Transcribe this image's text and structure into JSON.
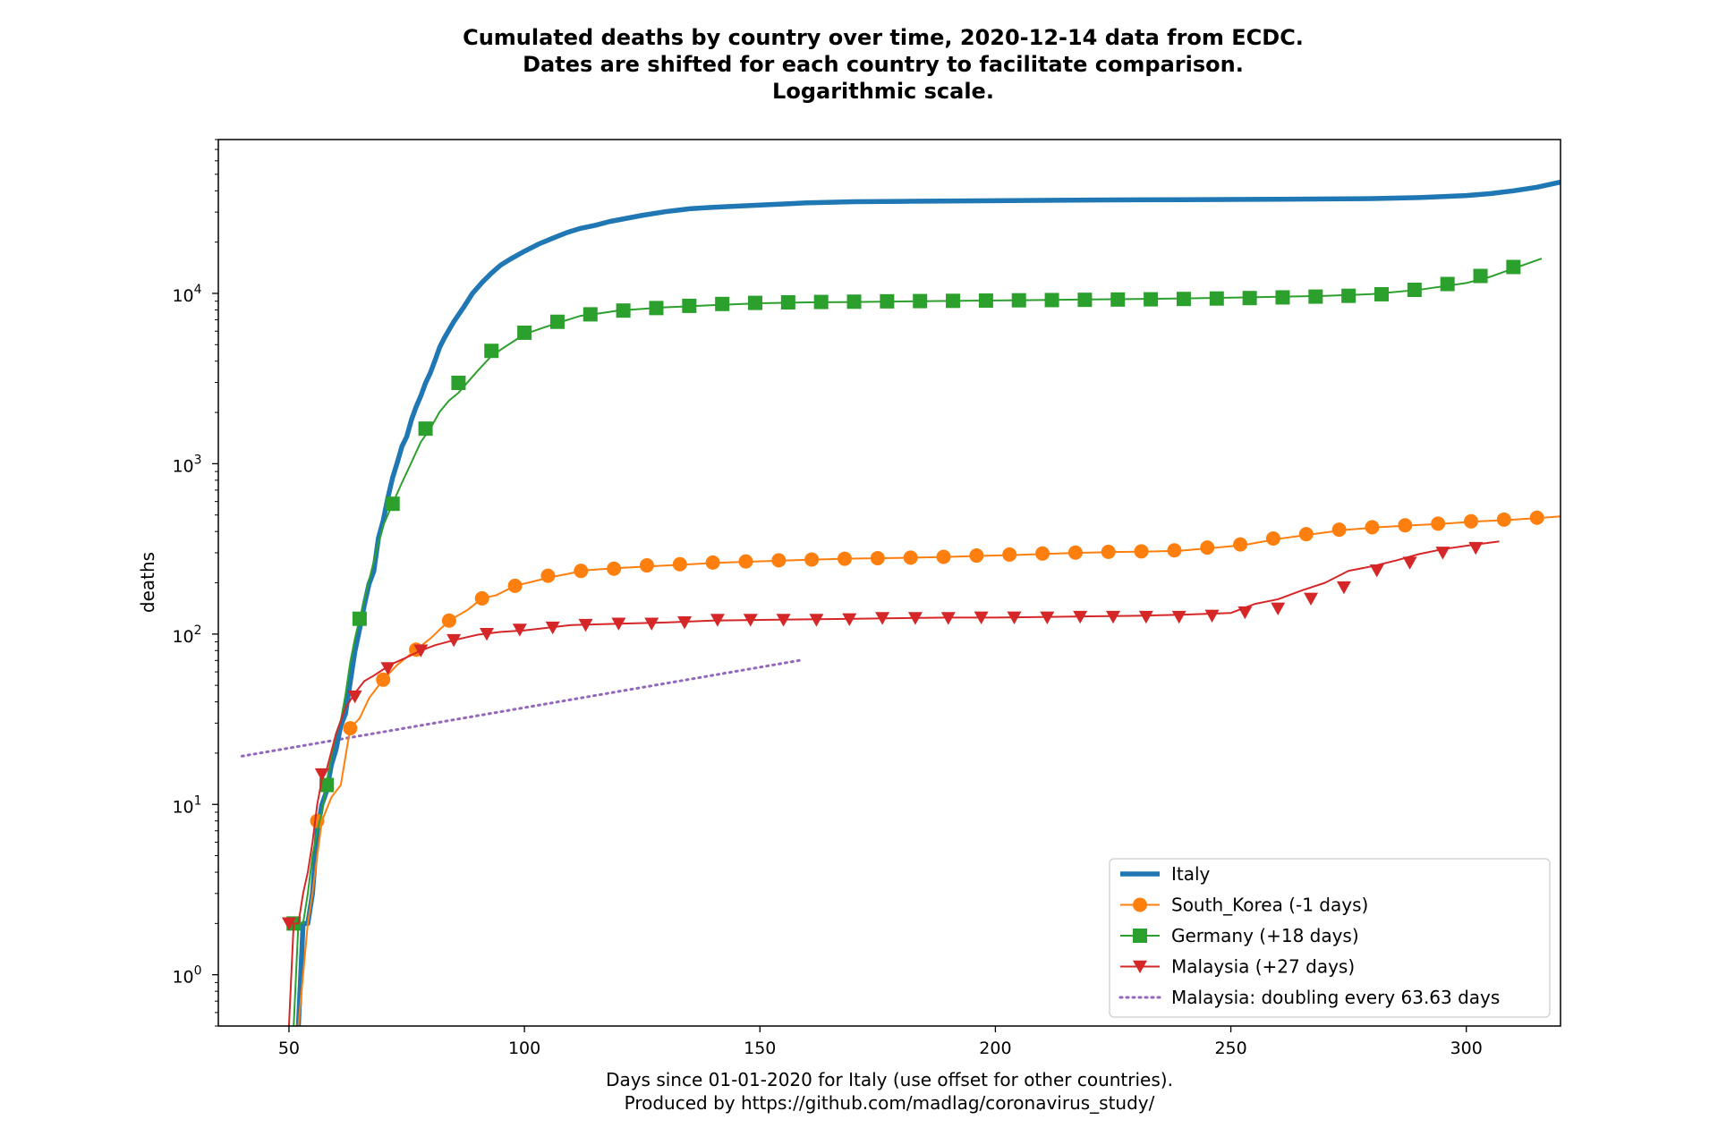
{
  "chart_data": {
    "type": "line",
    "title_lines": [
      "Cumulated deaths by country over time, 2020-12-14 data from ECDC.",
      "Dates are shifted for each country to facilitate comparison.",
      "Logarithmic scale."
    ],
    "xlabel_lines": [
      "Days since 01-01-2020 for Italy (use offset for other countries).",
      "Produced by https://github.com/madlag/coronavirus_study/"
    ],
    "ylabel": "deaths",
    "y_scale": "log",
    "xlim": [
      35,
      320
    ],
    "ylim": [
      0.5,
      80000
    ],
    "x_ticks": [
      50,
      100,
      150,
      200,
      250,
      300
    ],
    "y_ticks": [
      {
        "value": 1,
        "label": "10",
        "exp": "0"
      },
      {
        "value": 10,
        "label": "10",
        "exp": "1"
      },
      {
        "value": 100,
        "label": "10",
        "exp": "2"
      },
      {
        "value": 1000,
        "label": "10",
        "exp": "3"
      },
      {
        "value": 10000,
        "label": "10",
        "exp": "4"
      }
    ],
    "grid": false,
    "legend_position": "lower-right",
    "series": [
      {
        "name": "Italy",
        "color": "#1f77b4",
        "marker": "none",
        "line": "solid-thick",
        "x": [
          52,
          53,
          54,
          55,
          56,
          57,
          58,
          59,
          60,
          61,
          62,
          63,
          64,
          65,
          66,
          67,
          68,
          69,
          70,
          71,
          72,
          73,
          74,
          75,
          76,
          77,
          78,
          79,
          80,
          81,
          82,
          83,
          85,
          87,
          89,
          91,
          93,
          95,
          97,
          100,
          103,
          106,
          109,
          112,
          115,
          118,
          121,
          125,
          130,
          135,
          140,
          150,
          160,
          170,
          180,
          200,
          220,
          240,
          260,
          280,
          290,
          300,
          305,
          310,
          315,
          320
        ],
        "y": [
          0.5,
          2,
          2,
          3,
          7,
          10,
          12,
          17,
          21,
          29,
          34,
          52,
          79,
          107,
          148,
          197,
          233,
          366,
          463,
          631,
          827,
          1016,
          1266,
          1441,
          1809,
          2158,
          2503,
          2978,
          3405,
          4032,
          4825,
          5476,
          6820,
          8215,
          10023,
          11591,
          13155,
          14681,
          15887,
          17669,
          19468,
          21067,
          22745,
          24114,
          25085,
          26384,
          27359,
          28710,
          30201,
          31368,
          32007,
          33000,
          34000,
          34500,
          34700,
          35000,
          35300,
          35500,
          35700,
          36000,
          36500,
          37500,
          38500,
          40000,
          42000,
          45000
        ]
      },
      {
        "name": "South_Korea (-1 days)",
        "color": "#ff7f0e",
        "marker": "circle",
        "line": "solid",
        "x": [
          52,
          53,
          54,
          55,
          56,
          57,
          59,
          61,
          63,
          65,
          67,
          70,
          73,
          77,
          80,
          84,
          88,
          91,
          94,
          98,
          102,
          105,
          109,
          113,
          120,
          127,
          134,
          141,
          148,
          155,
          162,
          169,
          176,
          183,
          190,
          197,
          204,
          211,
          218,
          225,
          232,
          239,
          246,
          253,
          260,
          267,
          274,
          281,
          288,
          295,
          302,
          309,
          316,
          320
        ],
        "y": [
          0.5,
          1,
          2,
          3,
          5,
          8,
          11,
          13,
          28,
          32,
          42,
          54,
          66,
          81,
          94,
          120,
          139,
          162,
          169,
          192,
          204,
          214,
          225,
          237,
          244,
          250,
          256,
          262,
          266,
          270,
          274,
          277,
          279,
          281,
          284,
          288,
          291,
          296,
          300,
          303,
          305,
          308,
          320,
          334,
          362,
          385,
          408,
          423,
          434,
          444,
          458,
          468,
          481,
          491
        ],
        "marker_x": [
          56,
          63,
          70,
          77,
          84,
          91,
          98,
          105,
          112,
          119,
          126,
          133,
          140,
          147,
          154,
          161,
          168,
          175,
          182,
          189,
          196,
          203,
          210,
          217,
          224,
          231,
          238,
          245,
          252,
          259,
          266,
          273,
          280,
          287,
          294,
          301,
          308,
          315
        ],
        "marker_y": [
          8,
          28,
          54,
          81,
          120,
          162,
          192,
          220,
          235,
          242,
          253,
          257,
          263,
          267,
          271,
          274,
          277,
          279,
          281,
          284,
          289,
          293,
          297,
          301,
          304,
          306,
          310,
          322,
          336,
          364,
          386,
          410,
          424,
          435,
          445,
          459,
          470,
          482
        ]
      },
      {
        "name": "Germany (+18 days)",
        "color": "#2ca02c",
        "marker": "square",
        "line": "solid",
        "x": [
          51,
          52,
          53,
          54,
          55,
          56,
          57,
          58,
          59,
          60,
          61,
          62,
          63,
          64,
          65,
          66,
          67,
          68,
          69,
          70,
          72,
          74,
          76,
          78,
          80,
          82,
          84,
          86,
          88,
          90,
          93,
          96,
          100,
          104,
          108,
          112,
          116,
          120,
          130,
          140,
          150,
          160,
          170,
          180,
          200,
          220,
          240,
          260,
          270,
          280,
          290,
          300,
          305,
          310,
          316
        ],
        "y": [
          0.5,
          2,
          2,
          3,
          5,
          7,
          9,
          13,
          19,
          26,
          31,
          44,
          68,
          94,
          123,
          157,
          206,
          267,
          342,
          433,
          582,
          775,
          1017,
          1342,
          1607,
          2016,
          2349,
          2607,
          3022,
          3495,
          4294,
          4879,
          5750,
          6288,
          6831,
          7392,
          7634,
          7935,
          8283,
          8525,
          8745,
          8857,
          8895,
          8968,
          9085,
          9211,
          9333,
          9550,
          9668,
          9900,
          10500,
          11500,
          12500,
          14000,
          16000
        ],
        "marker_x": [
          51,
          58,
          65,
          72,
          79,
          86,
          93,
          100,
          107,
          114,
          121,
          128,
          135,
          142,
          149,
          156,
          163,
          170,
          177,
          184,
          191,
          198,
          205,
          212,
          219,
          226,
          233,
          240,
          247,
          254,
          261,
          268,
          275,
          282,
          289,
          296,
          303,
          310
        ],
        "marker_y": [
          2,
          13,
          123,
          582,
          1607,
          2983,
          4598,
          5876,
          6812,
          7533,
          7928,
          8203,
          8450,
          8668,
          8794,
          8857,
          8903,
          8940,
          8981,
          9013,
          9041,
          9073,
          9109,
          9135,
          9168,
          9204,
          9230,
          9274,
          9330,
          9386,
          9471,
          9572,
          9677,
          9883,
          10490,
          11351,
          12657,
          14286
        ]
      },
      {
        "name": "Malaysia (+27 days)",
        "color": "#d62728",
        "marker": "triangle-down",
        "line": "solid",
        "x": [
          50,
          51,
          52,
          53,
          54,
          55,
          56,
          57,
          58,
          60,
          62,
          64,
          66,
          68,
          70,
          72,
          75,
          78,
          81,
          85,
          90,
          95,
          100,
          110,
          120,
          130,
          140,
          150,
          160,
          170,
          180,
          190,
          200,
          210,
          220,
          230,
          240,
          250,
          255,
          260,
          265,
          270,
          275,
          280,
          285,
          290,
          295,
          300,
          307
        ],
        "y": [
          0.5,
          2,
          2,
          3,
          4,
          6,
          10,
          14,
          16,
          26,
          37,
          45,
          53,
          57,
          62,
          67,
          73,
          80,
          86,
          92,
          99,
          103,
          105,
          113,
          115,
          117,
          120,
          121,
          122,
          123,
          124,
          125,
          125,
          126,
          127,
          128,
          130,
          133,
          150,
          160,
          180,
          200,
          235,
          250,
          270,
          295,
          315,
          330,
          350
        ],
        "marker_x": [
          50,
          57,
          64,
          71,
          78,
          85,
          92,
          99,
          106,
          113,
          120,
          127,
          134,
          141,
          148,
          155,
          162,
          169,
          176,
          183,
          190,
          197,
          204,
          211,
          218,
          225,
          232,
          239,
          246,
          253,
          260,
          267,
          274,
          281,
          288,
          295,
          302
        ],
        "marker_y": [
          2,
          15,
          43,
          63,
          80,
          92,
          100,
          106,
          109,
          113,
          115,
          115,
          117,
          121,
          121,
          121,
          121,
          122,
          124,
          124,
          124,
          125,
          125,
          125,
          126,
          126,
          126,
          126,
          128,
          134,
          141,
          161,
          188,
          236,
          262,
          300,
          320
        ]
      },
      {
        "name": "Malaysia: doubling every 63.63 days",
        "color": "#9467bd",
        "marker": "none",
        "line": "dotted",
        "x": [
          40,
          159
        ],
        "y": [
          19.2,
          70.5
        ]
      }
    ]
  }
}
